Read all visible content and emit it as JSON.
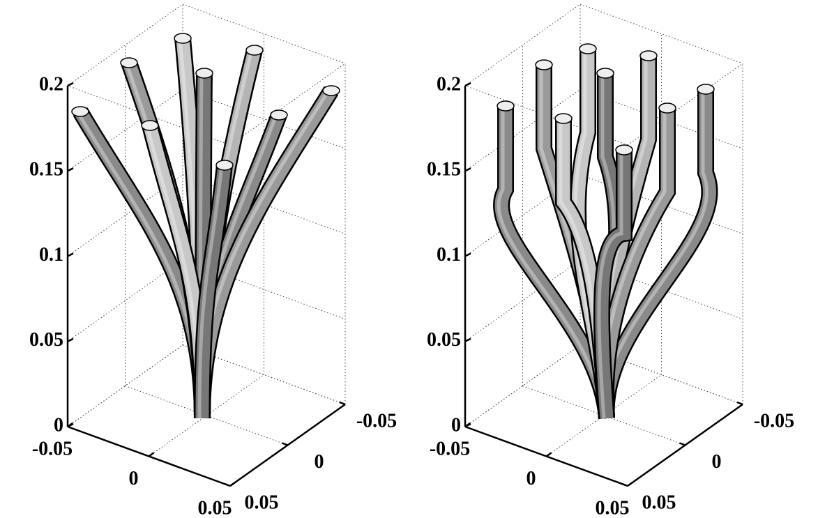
{
  "chart_data": [
    {
      "type": "tubes3d",
      "xlim": [
        -0.05,
        0.05
      ],
      "xticks": [
        -0.05,
        0,
        0.05
      ],
      "ylim": [
        -0.05,
        0.05
      ],
      "yticks": [
        -0.05,
        0,
        0.05
      ],
      "zlim": [
        0,
        0.2
      ],
      "zticks": [
        0,
        0.05,
        0.1,
        0.15,
        0.2
      ],
      "grid": true
    },
    {
      "type": "tubes3d",
      "xlim": [
        -0.05,
        0.05
      ],
      "xticks": [
        -0.05,
        0,
        0.05
      ],
      "ylim": [
        -0.05,
        0.05
      ],
      "yticks": [
        -0.05,
        0,
        0.05
      ],
      "zlim": [
        0,
        0.2
      ],
      "zticks": [
        0,
        0.05,
        0.1,
        0.15,
        0.2
      ],
      "grid": true
    }
  ]
}
